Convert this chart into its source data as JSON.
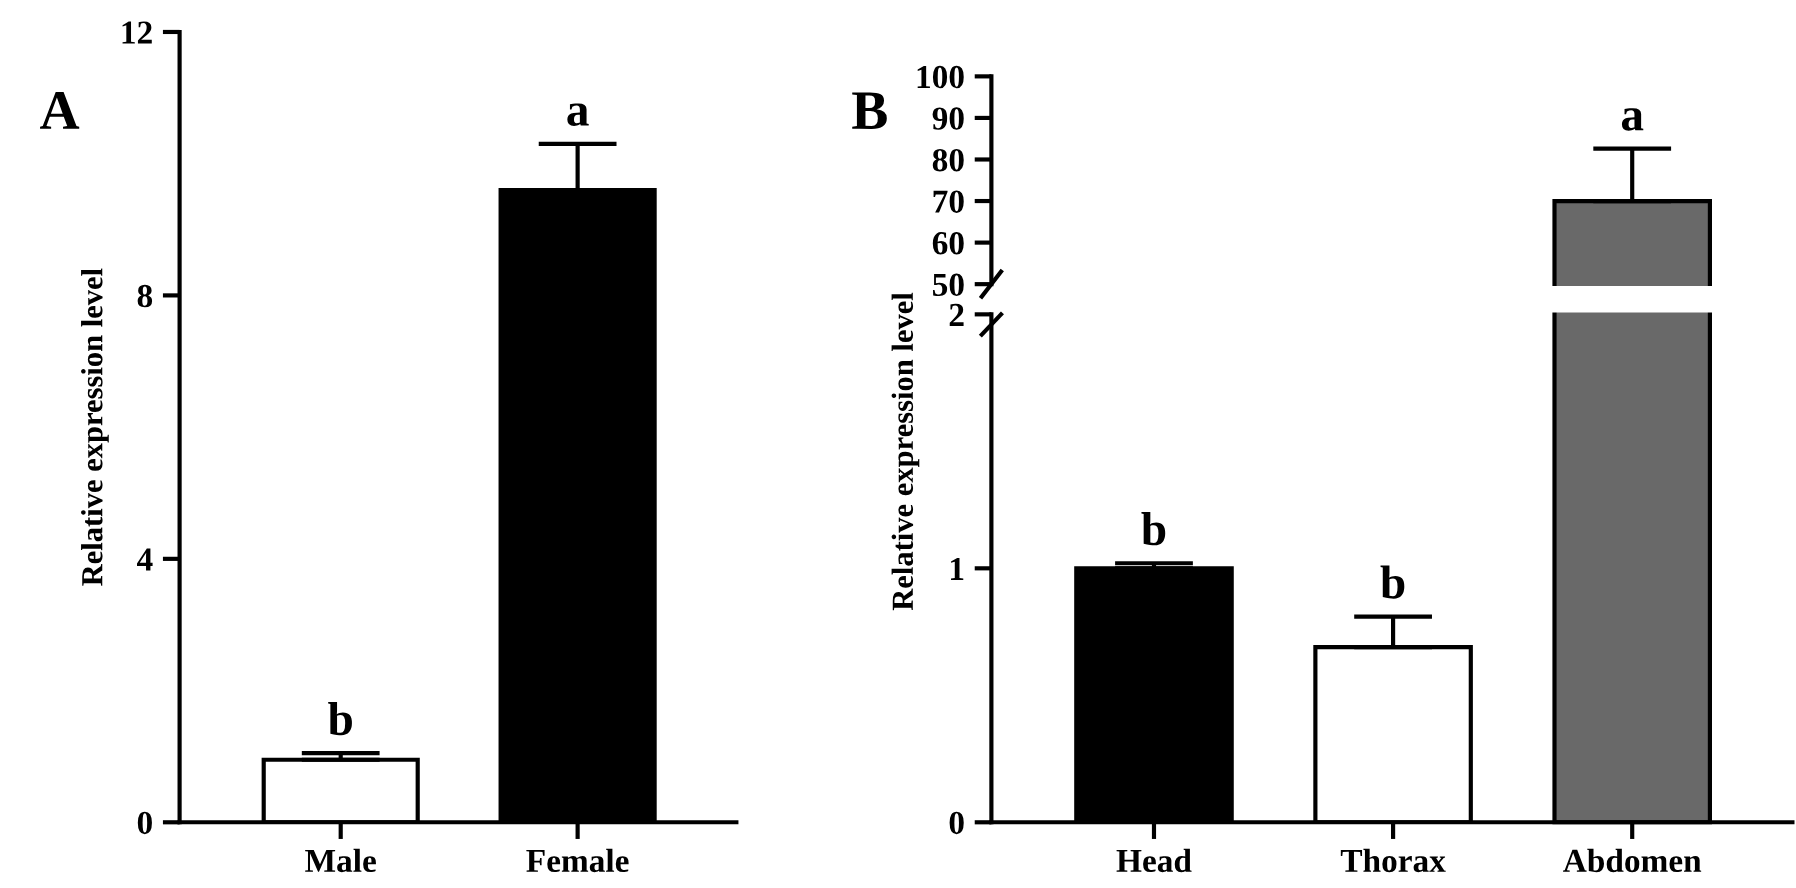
{
  "chart_data": [
    {
      "type": "bar",
      "title": "A",
      "ylabel": "Relative expression level",
      "categories": [
        "Male",
        "Female"
      ],
      "values": [
        0.95,
        9.6
      ],
      "colors": [
        "#ffffff",
        "#000000"
      ],
      "errors": [
        [
          0.95,
          1.05
        ],
        [
          9.6,
          10.3
        ]
      ],
      "ylim": [
        0,
        12
      ],
      "yticks": [
        0,
        4,
        8,
        12
      ],
      "grid": false,
      "legend": false,
      "annotations": [
        {
          "text": "b",
          "x": "Male",
          "y": 1.05
        },
        {
          "text": "a",
          "x": "Female",
          "y": 10.3
        }
      ]
    },
    {
      "type": "bar",
      "title": "B",
      "categories": [
        "Head",
        "Thorax",
        "Abdomen"
      ],
      "values": [
        null,
        null,
        70
      ],
      "colors": [
        "#000000",
        "#ffffff",
        "#696969"
      ],
      "errors": [
        null,
        null,
        [
          70,
          82.6
        ]
      ],
      "ylim": [
        50,
        100
      ],
      "yticks": [
        50,
        60,
        70,
        80,
        90,
        100
      ],
      "tick_labels": "y",
      "grid": false,
      "legend": false,
      "annotations": [
        {
          "text": "a",
          "x": "Abdomen",
          "y": 82.6
        }
      ]
    },
    {
      "type": "bar",
      "ylabel": "Relative expression level",
      "categories": [
        "Head",
        "Thorax",
        "Abdomen"
      ],
      "values": [
        1.0,
        0.69,
        null
      ],
      "colors": [
        "#000000",
        "#ffffff",
        "#696969"
      ],
      "errors": [
        [
          1.0,
          1.02
        ],
        [
          0.69,
          0.81
        ],
        null
      ],
      "ylim": [
        0,
        2
      ],
      "yticks": [
        0,
        1,
        2
      ],
      "grid": false,
      "legend": false,
      "annotations": [
        {
          "text": "b",
          "x": "Head",
          "y": 1.02
        },
        {
          "text": "b",
          "x": "Thorax",
          "y": 0.81
        }
      ]
    }
  ]
}
